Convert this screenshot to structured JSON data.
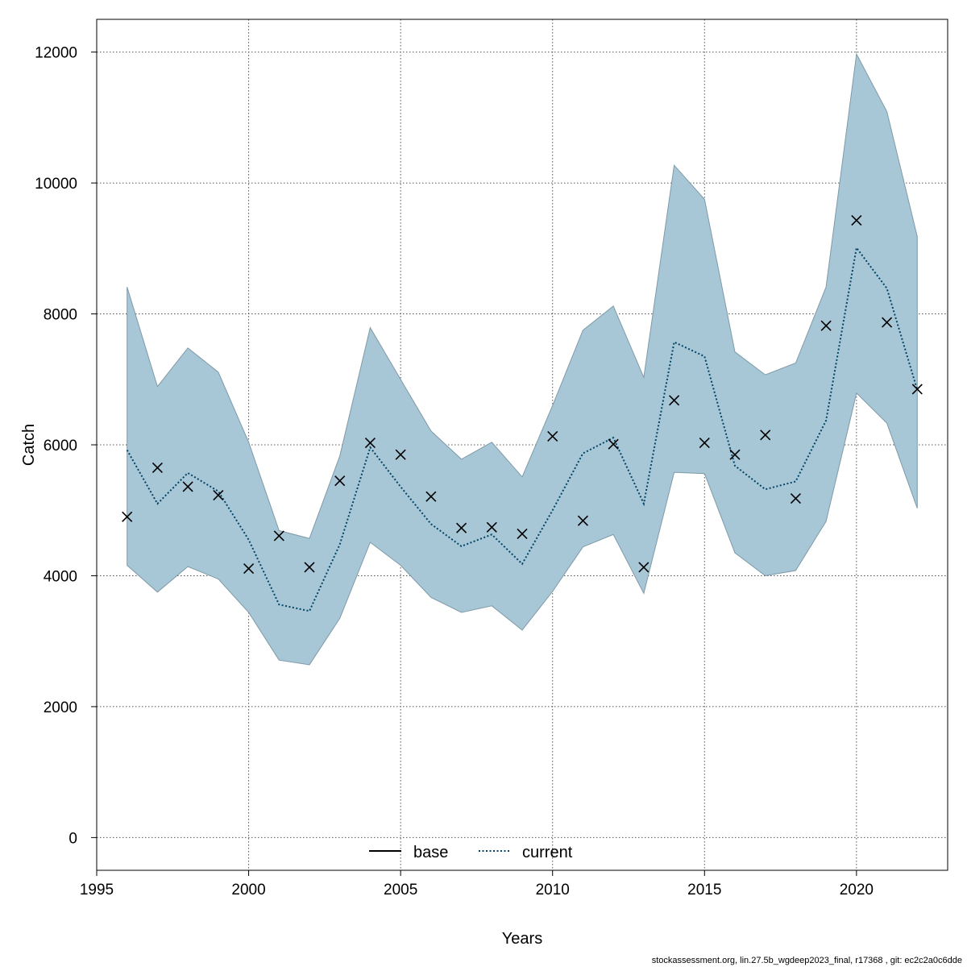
{
  "chart_data": {
    "type": "line",
    "xlabel": "Years",
    "ylabel": "Catch",
    "xlim": [
      1995,
      2023
    ],
    "ylim": [
      -500,
      12500
    ],
    "x_ticks": [
      1995,
      2000,
      2005,
      2010,
      2015,
      2020
    ],
    "y_ticks": [
      0,
      2000,
      4000,
      6000,
      8000,
      10000,
      12000
    ],
    "grid": true,
    "x": [
      1996,
      1997,
      1998,
      1999,
      2000,
      2001,
      2002,
      2003,
      2004,
      2005,
      2006,
      2007,
      2008,
      2009,
      2010,
      2011,
      2012,
      2013,
      2014,
      2015,
      2016,
      2017,
      2018,
      2019,
      2020,
      2021,
      2022
    ],
    "series": [
      {
        "name": "current",
        "style": "dotted",
        "color": "#004466",
        "values": [
          5920,
          5100,
          5570,
          5290,
          4550,
          3560,
          3460,
          4480,
          5960,
          5360,
          4790,
          4450,
          4630,
          4180,
          5000,
          5870,
          6110,
          5100,
          7570,
          7350,
          5680,
          5320,
          5440,
          6370,
          9010,
          8390,
          6840
        ]
      }
    ],
    "confidence_band": {
      "color": "#a7c6d6",
      "lower": [
        4160,
        3750,
        4140,
        3950,
        3440,
        2710,
        2640,
        3350,
        4510,
        4160,
        3670,
        3440,
        3540,
        3170,
        3760,
        4440,
        4630,
        3730,
        5580,
        5560,
        4350,
        4000,
        4080,
        4830,
        6790,
        6330,
        5030
      ],
      "upper": [
        8410,
        6890,
        7480,
        7110,
        6040,
        4690,
        4570,
        5830,
        7790,
        7000,
        6210,
        5780,
        6040,
        5510,
        6600,
        7750,
        8120,
        7030,
        10270,
        9750,
        7420,
        7070,
        7250,
        8410,
        11970,
        11090,
        9180
      ]
    },
    "observations": {
      "marker": "x",
      "values": [
        4900,
        5650,
        5360,
        5230,
        4110,
        4610,
        4130,
        5450,
        6030,
        5850,
        5210,
        4730,
        4740,
        4640,
        6130,
        4840,
        6010,
        4130,
        6680,
        6030,
        5850,
        6150,
        5180,
        7820,
        9430,
        7870,
        6850
      ]
    },
    "legend": {
      "position": "bottom-center",
      "entries": [
        {
          "label": "base",
          "style": "solid",
          "color": "#000000"
        },
        {
          "label": "current",
          "style": "dotted",
          "color": "#004466"
        }
      ]
    }
  },
  "footer": "stockassessment.org, lin.27.5b_wgdeep2023_final, r17368 , git: ec2c2a0c6dde"
}
